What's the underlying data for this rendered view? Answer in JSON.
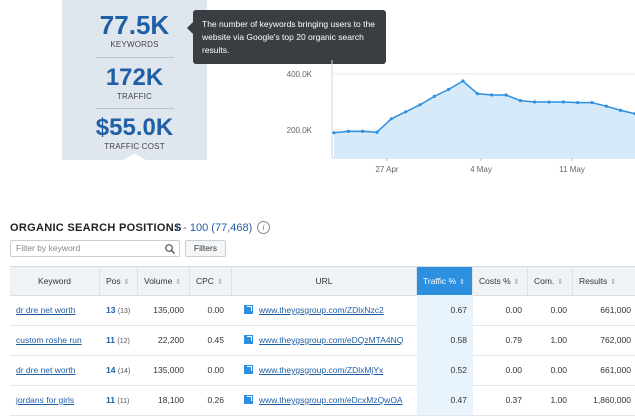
{
  "summary": {
    "keywords_value": "77.5K",
    "keywords_label": "KEYWORDS",
    "traffic_value": "172K",
    "traffic_label": "TRAFFIC",
    "traffic_cost_value": "$55.0K",
    "traffic_cost_label": "TRAFFIC COST"
  },
  "tooltip": {
    "text": "The number of keywords bringing users to the website via Google's top 20 organic search results."
  },
  "chart_data": {
    "type": "area",
    "y_ticks": [
      "400.0K",
      "200.0K"
    ],
    "x_ticks": [
      "27 Apr",
      "4 May",
      "11 May"
    ],
    "values": [
      190000,
      195000,
      195000,
      192000,
      240000,
      265000,
      290000,
      320000,
      345000,
      375000,
      330000,
      325000,
      325000,
      305000,
      300000,
      300000,
      300000,
      298000,
      298000,
      285000,
      270000,
      258000
    ],
    "ylim": [
      100000,
      450000
    ],
    "grid": true,
    "color": "#2c8fe0"
  },
  "section": {
    "title": "ORGANIC SEARCH POSITIONS",
    "range": "1 - 100 (77,468)",
    "filter_placeholder": "Filter by keyword",
    "filters_label": "Filters"
  },
  "table": {
    "headers": {
      "keyword": "Keyword",
      "pos": "Pos",
      "volume": "Volume",
      "cpc": "CPC",
      "url": "URL",
      "traffic": "Traffic %",
      "costs": "Costs %",
      "com": "Com.",
      "results": "Results"
    },
    "rows": [
      {
        "keyword": "dr dre net worth",
        "pos": "13",
        "pos_prev": "(13)",
        "volume": "135,000",
        "cpc": "0.00",
        "url": "www.theygsgroup.com/ZDlxNzc2",
        "traffic": "0.67",
        "costs": "0.00",
        "com": "0.00",
        "results": "661,000"
      },
      {
        "keyword": "custom roshe run",
        "pos": "11",
        "pos_prev": "(12)",
        "volume": "22,200",
        "cpc": "0.45",
        "url": "www.theygsgroup.com/eDQzMTA4NQ",
        "traffic": "0.58",
        "costs": "0.79",
        "com": "1.00",
        "results": "762,000"
      },
      {
        "keyword": "dr dre net worth",
        "pos": "14",
        "pos_prev": "(14)",
        "volume": "135,000",
        "cpc": "0.00",
        "url": "www.theygsgroup.com/ZDlxMjYx",
        "traffic": "0.52",
        "costs": "0.00",
        "com": "0.00",
        "results": "661,000"
      },
      {
        "keyword": "jordans for girls",
        "pos": "11",
        "pos_prev": "(11)",
        "volume": "18,100",
        "cpc": "0.26",
        "url": "www.theygsgroup.com/eDcxMzQwOA",
        "traffic": "0.47",
        "costs": "0.37",
        "com": "1.00",
        "results": "1,860,000"
      }
    ]
  }
}
